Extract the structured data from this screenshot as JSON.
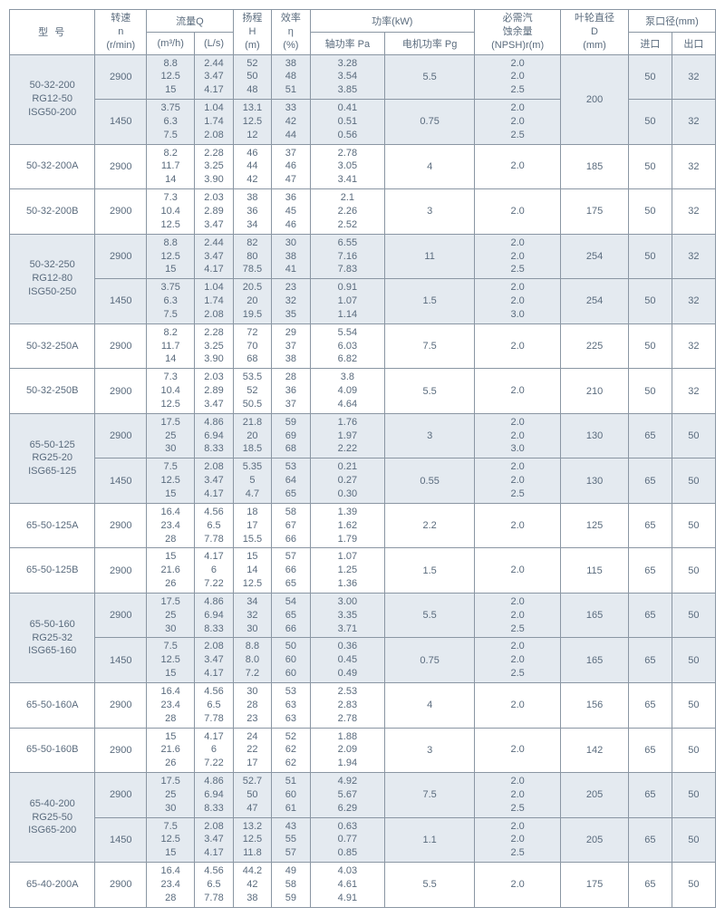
{
  "headers": {
    "model": "型    号",
    "speed": "转速\nn\n(r/min)",
    "flow_group": "流量Q",
    "flow_m3h": "(m³/h)",
    "flow_ls": "(L/s)",
    "head": "扬程\nH\n(m)",
    "eff": "效率\nη\n(%)",
    "power_group": "功率(kW)",
    "power_shaft": "轴功率 Pa",
    "power_motor": "电机功率 Pg",
    "npsh": "必需汽\n蚀余量\n(NPSH)r(m)",
    "imp_d": "叶轮直径\nD\n(mm)",
    "port_group": "泵口径(mm)",
    "port_in": "进口",
    "port_out": "出口"
  },
  "groups": [
    {
      "model": "50-32-200\nRG12-50\nISG50-200",
      "shaded": true,
      "rows": [
        {
          "speed": "2900",
          "m3h": "8.8\n12.5\n15",
          "ls": "2.44\n3.47\n4.17",
          "h": "52\n50\n48",
          "eff": "38\n48\n51",
          "pa": "3.28\n3.54\n3.85",
          "pg": "5.5",
          "npsh": "2.0\n2.0\n2.5",
          "d": "200",
          "din": "50",
          "dout": "32",
          "d_rowspan": 2
        },
        {
          "speed": "1450",
          "m3h": "3.75\n6.3\n7.5",
          "ls": "1.04\n1.74\n2.08",
          "h": "13.1\n12.5\n12",
          "eff": "33\n42\n44",
          "pa": "0.41\n0.51\n0.56",
          "pg": "0.75",
          "npsh": "2.0\n2.0\n2.5",
          "din": "50",
          "dout": "32"
        }
      ]
    },
    {
      "model": "50-32-200A",
      "shaded": false,
      "rows": [
        {
          "speed": "2900",
          "m3h": "8.2\n11.7\n14",
          "ls": "2.28\n3.25\n3.90",
          "h": "46\n44\n42",
          "eff": "37\n46\n47",
          "pa": "2.78\n3.05\n3.41",
          "pg": "4",
          "npsh": "2.0",
          "d": "185",
          "din": "50",
          "dout": "32"
        }
      ]
    },
    {
      "model": "50-32-200B",
      "shaded": false,
      "rows": [
        {
          "speed": "2900",
          "m3h": "7.3\n10.4\n12.5",
          "ls": "2.03\n2.89\n3.47",
          "h": "38\n36\n34",
          "eff": "36\n45\n46",
          "pa": "2.1\n2.26\n2.52",
          "pg": "3",
          "npsh": "2.0",
          "d": "175",
          "din": "50",
          "dout": "32"
        }
      ]
    },
    {
      "model": "50-32-250\nRG12-80\nISG50-250",
      "shaded": true,
      "rows": [
        {
          "speed": "2900",
          "m3h": "8.8\n12.5\n15",
          "ls": "2.44\n3.47\n4.17",
          "h": "82\n80\n78.5",
          "eff": "30\n38\n41",
          "pa": "6.55\n7.16\n7.83",
          "pg": "11",
          "npsh": "2.0\n2.0\n2.5",
          "d": "254",
          "din": "50",
          "dout": "32"
        },
        {
          "speed": "1450",
          "m3h": "3.75\n6.3\n7.5",
          "ls": "1.04\n1.74\n2.08",
          "h": "20.5\n20\n19.5",
          "eff": "23\n32\n35",
          "pa": "0.91\n1.07\n1.14",
          "pg": "1.5",
          "npsh": "2.0\n2.0\n3.0",
          "d": "254",
          "din": "50",
          "dout": "32"
        }
      ]
    },
    {
      "model": "50-32-250A",
      "shaded": false,
      "rows": [
        {
          "speed": "2900",
          "m3h": "8.2\n11.7\n14",
          "ls": "2.28\n3.25\n3.90",
          "h": "72\n70\n68",
          "eff": "29\n37\n38",
          "pa": "5.54\n6.03\n6.82",
          "pg": "7.5",
          "npsh": "2.0",
          "d": "225",
          "din": "50",
          "dout": "32"
        }
      ]
    },
    {
      "model": "50-32-250B",
      "shaded": false,
      "rows": [
        {
          "speed": "2900",
          "m3h": "7.3\n10.4\n12.5",
          "ls": "2.03\n2.89\n3.47",
          "h": "53.5\n52\n50.5",
          "eff": "28\n36\n37",
          "pa": "3.8\n4.09\n4.64",
          "pg": "5.5",
          "npsh": "2.0",
          "d": "210",
          "din": "50",
          "dout": "32"
        }
      ]
    },
    {
      "model": "65-50-125\nRG25-20\nISG65-125",
      "shaded": true,
      "rows": [
        {
          "speed": "2900",
          "m3h": "17.5\n25\n30",
          "ls": "4.86\n6.94\n8.33",
          "h": "21.8\n20\n18.5",
          "eff": "59\n69\n68",
          "pa": "1.76\n1.97\n2.22",
          "pg": "3",
          "npsh": "2.0\n2.0\n3.0",
          "d": "130",
          "din": "65",
          "dout": "50"
        },
        {
          "speed": "1450",
          "m3h": "7.5\n12.5\n15",
          "ls": "2.08\n3.47\n4.17",
          "h": "5.35\n5\n4.7",
          "eff": "53\n64\n65",
          "pa": "0.21\n0.27\n0.30",
          "pg": "0.55",
          "npsh": "2.0\n2.0\n2.5",
          "d": "130",
          "din": "65",
          "dout": "50"
        }
      ]
    },
    {
      "model": "65-50-125A",
      "shaded": false,
      "rows": [
        {
          "speed": "2900",
          "m3h": "16.4\n23.4\n28",
          "ls": "4.56\n6.5\n7.78",
          "h": "18\n17\n15.5",
          "eff": "58\n67\n66",
          "pa": "1.39\n1.62\n1.79",
          "pg": "2.2",
          "npsh": "2.0",
          "d": "125",
          "din": "65",
          "dout": "50"
        }
      ]
    },
    {
      "model": "65-50-125B",
      "shaded": false,
      "rows": [
        {
          "speed": "2900",
          "m3h": "15\n21.6\n26",
          "ls": "4.17\n6\n7.22",
          "h": "15\n14\n12.5",
          "eff": "57\n66\n65",
          "pa": "1.07\n1.25\n1.36",
          "pg": "1.5",
          "npsh": "2.0",
          "d": "115",
          "din": "65",
          "dout": "50"
        }
      ]
    },
    {
      "model": "65-50-160\nRG25-32\nISG65-160",
      "shaded": true,
      "rows": [
        {
          "speed": "2900",
          "m3h": "17.5\n25\n30",
          "ls": "4.86\n6.94\n8.33",
          "h": "34\n32\n30",
          "eff": "54\n65\n66",
          "pa": "3.00\n3.35\n3.71",
          "pg": "5.5",
          "npsh": "2.0\n2.0\n2.5",
          "d": "165",
          "din": "65",
          "dout": "50"
        },
        {
          "speed": "1450",
          "m3h": "7.5\n12.5\n15",
          "ls": "2.08\n3.47\n4.17",
          "h": "8.8\n8.0\n7.2",
          "eff": "50\n60\n60",
          "pa": "0.36\n0.45\n0.49",
          "pg": "0.75",
          "npsh": "2.0\n2.0\n2.5",
          "d": "165",
          "din": "65",
          "dout": "50"
        }
      ]
    },
    {
      "model": "65-50-160A",
      "shaded": false,
      "rows": [
        {
          "speed": "2900",
          "m3h": "16.4\n23.4\n28",
          "ls": "4.56\n6.5\n7.78",
          "h": "30\n28\n23",
          "eff": "53\n63\n63",
          "pa": "2.53\n2.83\n2.78",
          "pg": "4",
          "npsh": "2.0",
          "d": "156",
          "din": "65",
          "dout": "50"
        }
      ]
    },
    {
      "model": "65-50-160B",
      "shaded": false,
      "rows": [
        {
          "speed": "2900",
          "m3h": "15\n21.6\n26",
          "ls": "4.17\n6\n7.22",
          "h": "24\n22\n17",
          "eff": "52\n62\n62",
          "pa": "1.88\n2.09\n1.94",
          "pg": "3",
          "npsh": "2.0",
          "d": "142",
          "din": "65",
          "dout": "50"
        }
      ]
    },
    {
      "model": "65-40-200\nRG25-50\nISG65-200",
      "shaded": true,
      "rows": [
        {
          "speed": "2900",
          "m3h": "17.5\n25\n30",
          "ls": "4.86\n6.94\n8.33",
          "h": "52.7\n50\n47",
          "eff": "51\n60\n61",
          "pa": "4.92\n5.67\n6.29",
          "pg": "7.5",
          "npsh": "2.0\n2.0\n2.5",
          "d": "205",
          "din": "65",
          "dout": "50"
        },
        {
          "speed": "1450",
          "m3h": "7.5\n12.5\n15",
          "ls": "2.08\n3.47\n4.17",
          "h": "13.2\n12.5\n11.8",
          "eff": "43\n55\n57",
          "pa": "0.63\n0.77\n0.85",
          "pg": "1.1",
          "npsh": "2.0\n2.0\n2.5",
          "d": "205",
          "din": "65",
          "dout": "50"
        }
      ]
    },
    {
      "model": "65-40-200A",
      "shaded": false,
      "rows": [
        {
          "speed": "2900",
          "m3h": "16.4\n23.4\n28",
          "ls": "4.56\n6.5\n7.78",
          "h": "44.2\n42\n38",
          "eff": "49\n58\n59",
          "pa": "4.03\n4.61\n4.91",
          "pg": "5.5",
          "npsh": "2.0",
          "d": "175",
          "din": "65",
          "dout": "50"
        }
      ]
    }
  ]
}
